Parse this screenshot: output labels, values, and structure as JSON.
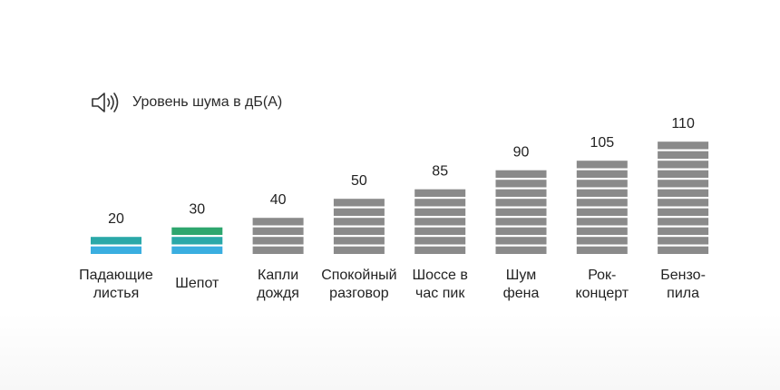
{
  "header": {
    "title": "Уровень шума в дБ(А)",
    "icon": "speaker-icon"
  },
  "chart_data": {
    "type": "bar",
    "title": "Уровень шума в дБ(А)",
    "categories": [
      [
        "Падающие",
        "листья"
      ],
      [
        "Шепот"
      ],
      [
        "Капли",
        "дождя"
      ],
      [
        "Спокойный",
        "разговор"
      ],
      [
        "Шоссе в",
        "час пик"
      ],
      [
        "Шум",
        "фена"
      ],
      [
        "Рок-",
        "концерт"
      ],
      [
        "Бензо-",
        "пила"
      ]
    ],
    "values": [
      20,
      30,
      40,
      50,
      85,
      90,
      105,
      110
    ],
    "segments": [
      2,
      3,
      4,
      6,
      7,
      9,
      10,
      12
    ],
    "colors": {
      "quiet_teal": "#2aa8a8",
      "quiet_blue": "#3aaee0",
      "whisper_green": "#2ea66e",
      "loud_gray": "#8a8a8a",
      "gap": "#ffffff"
    },
    "grid": false,
    "legend": "none"
  }
}
